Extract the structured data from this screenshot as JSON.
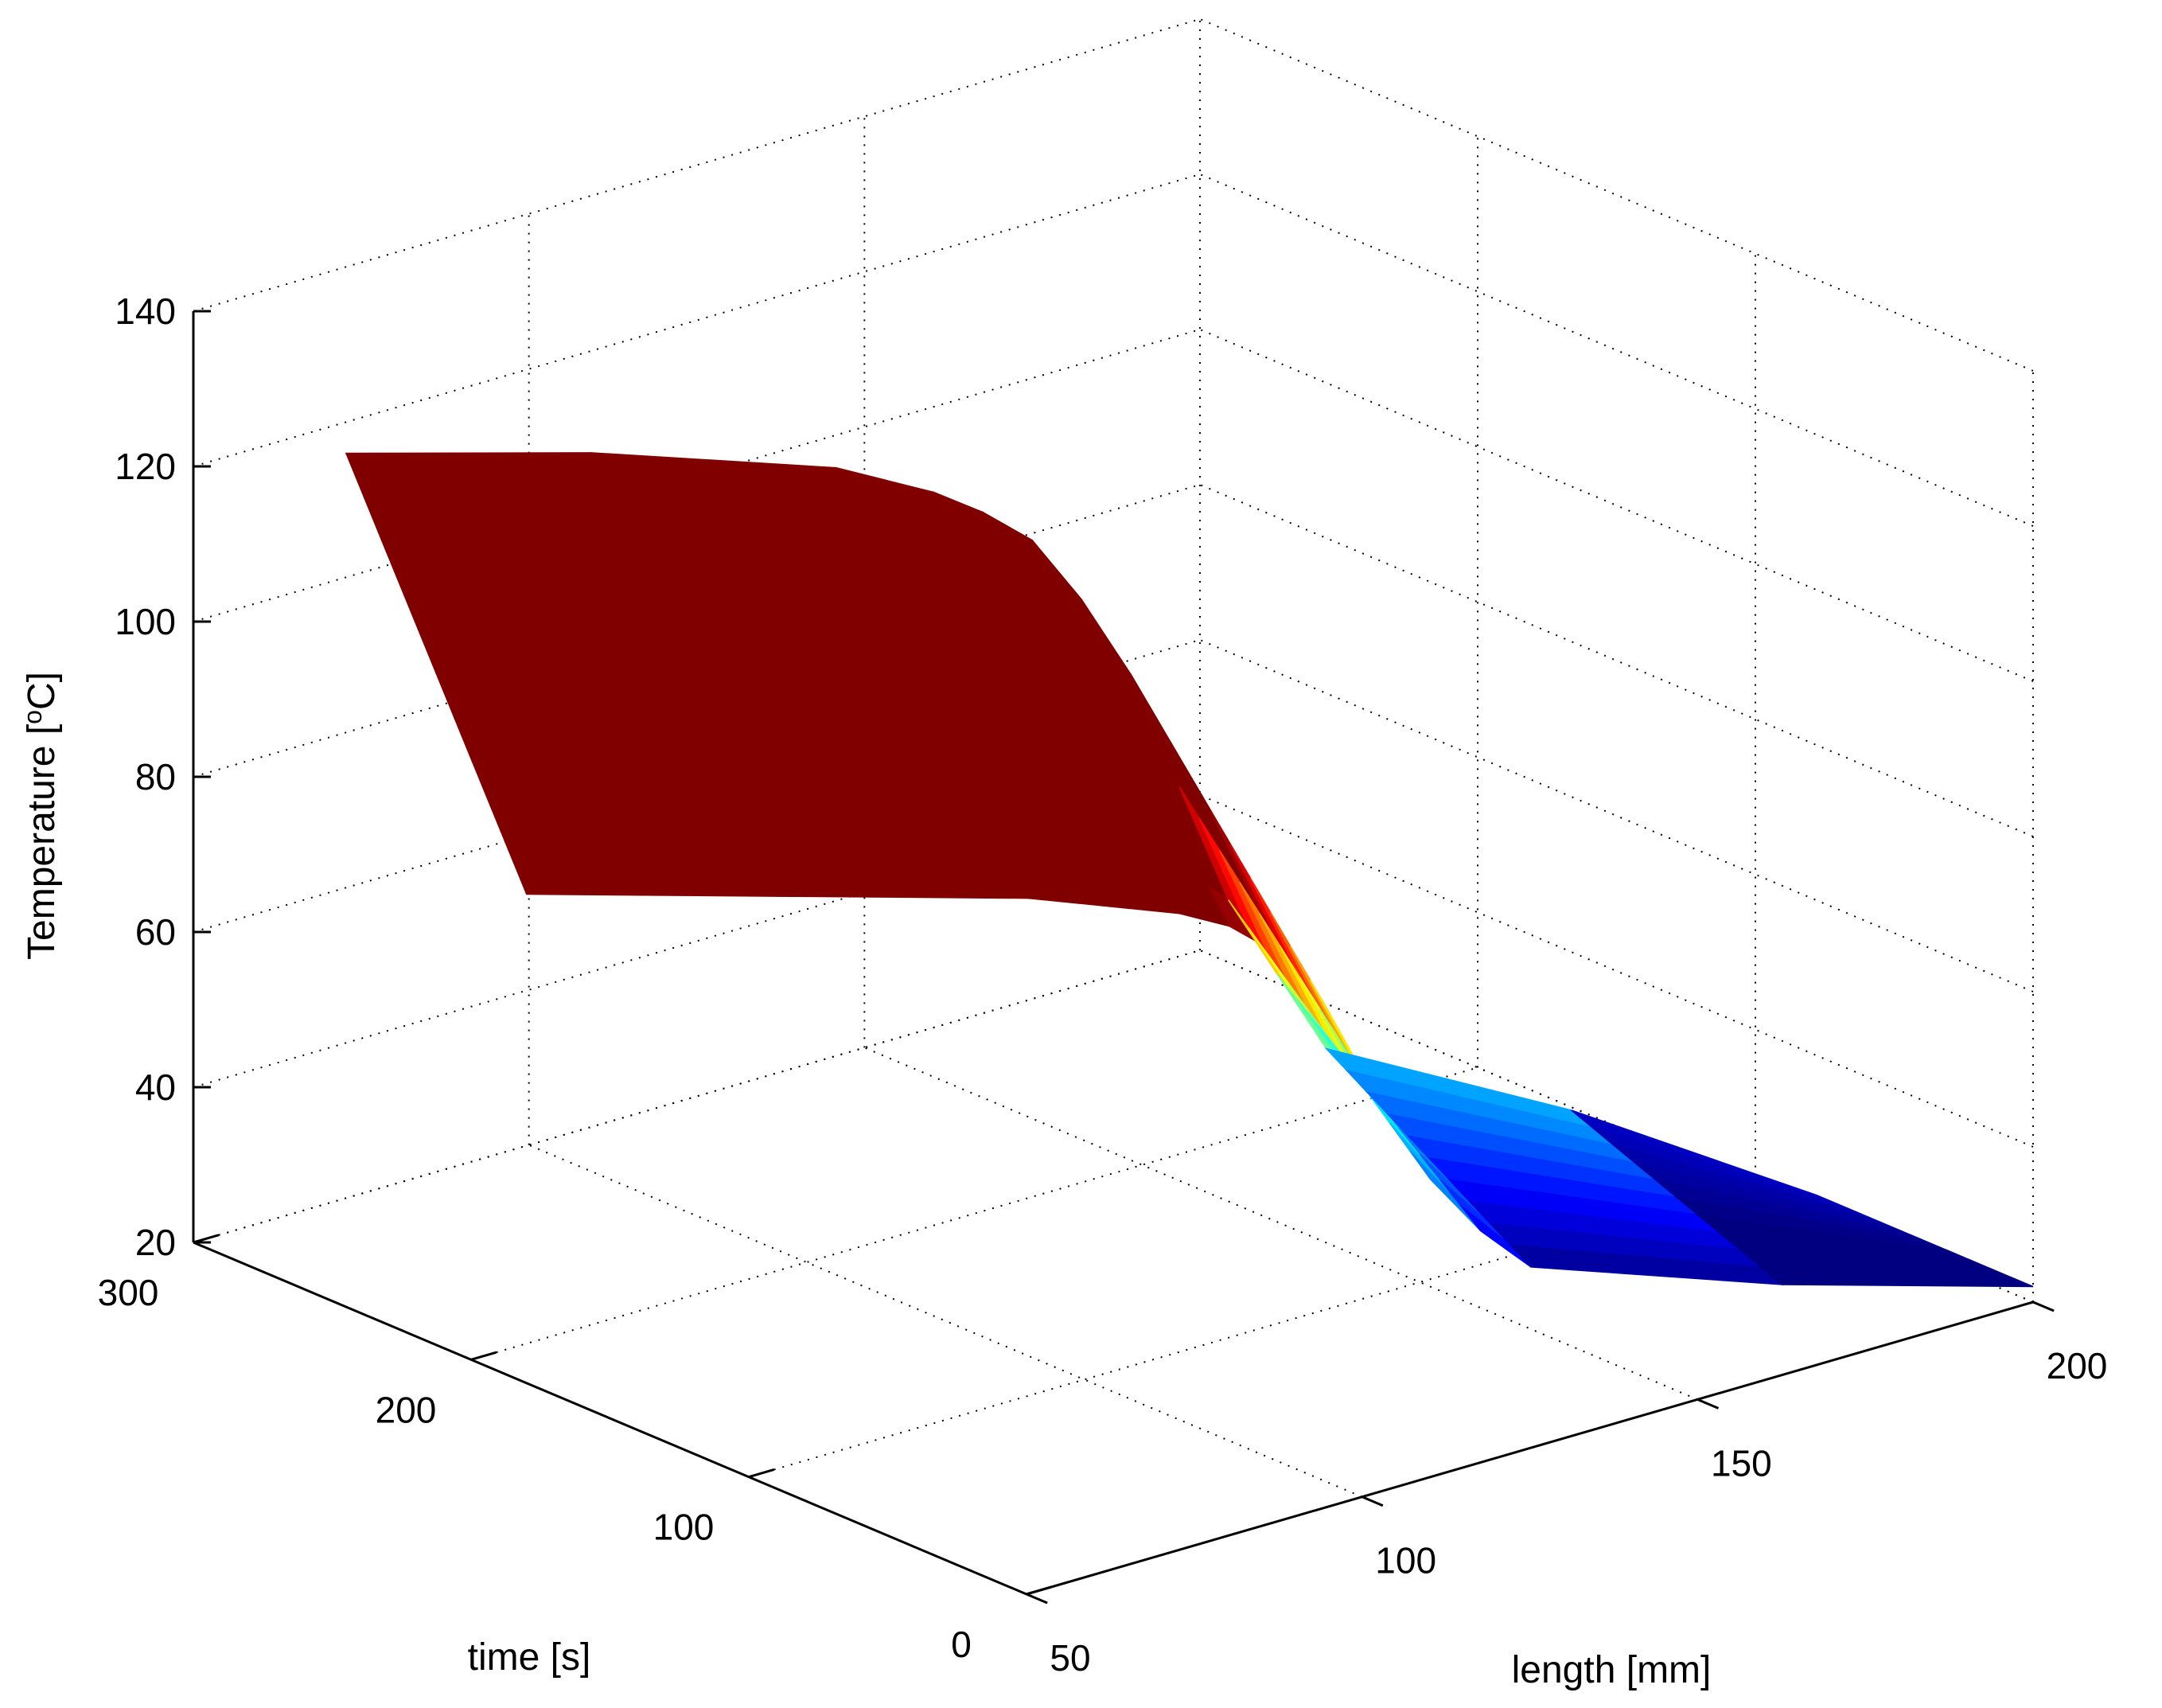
{
  "chart_data": {
    "type": "surface",
    "title": "",
    "xlabel": "length [mm]",
    "ylabel": "time [s]",
    "zlabel_main": "Temperature [",
    "zlabel_sup": "o",
    "zlabel_end": "C]",
    "xlim": [
      50,
      200
    ],
    "ylim": [
      0,
      300
    ],
    "zlim": [
      20,
      140
    ],
    "xticks": [
      50,
      100,
      150,
      200
    ],
    "yticks": [
      0,
      100,
      200,
      300
    ],
    "zticks": [
      20,
      40,
      60,
      80,
      100,
      120,
      140
    ],
    "grid": true,
    "colormap": "jet",
    "surface": {
      "x": [
        50,
        75,
        100,
        105,
        110,
        115,
        120,
        125,
        130,
        135,
        140,
        145,
        150,
        175,
        200
      ],
      "t_at_x50": [
        245,
        180
      ],
      "t_at_x200": [
        78,
        0
      ],
      "temperature_hot_side": [
        130,
        128,
        124,
        122,
        120,
        117,
        113,
        105,
        95,
        80,
        65,
        55,
        45,
        35,
        22
      ],
      "temperature_cool_side": [
        83,
        81,
        79,
        78,
        77,
        76,
        74,
        70,
        62,
        50,
        40,
        33,
        28,
        24,
        22
      ]
    }
  }
}
